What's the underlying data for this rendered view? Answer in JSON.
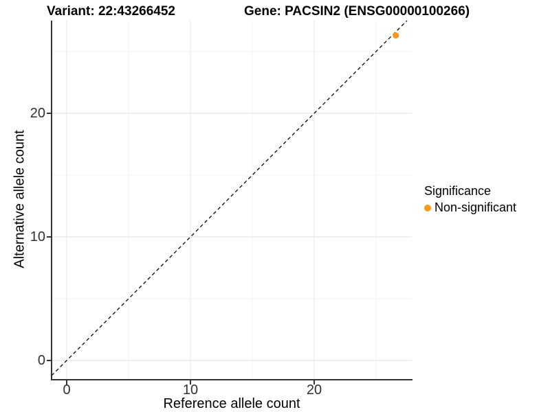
{
  "titles": {
    "variant": "Variant: 22:43266452",
    "gene": "Gene: PACSIN2 (ENSG00000100266)"
  },
  "chart_data": {
    "type": "scatter",
    "title_left": "Variant: 22:43266452",
    "title_right": "Gene: PACSIN2 (ENSG00000100266)",
    "xlabel": "Reference allele count",
    "ylabel": "Alternative allele count",
    "x_ticks": [
      0,
      10,
      20
    ],
    "y_ticks": [
      0,
      10,
      20
    ],
    "x_tick_labels": [
      "0",
      "10",
      "20"
    ],
    "y_tick_labels": [
      "0",
      "10",
      "20"
    ],
    "x_minor_ticks": [
      5,
      15,
      25
    ],
    "y_minor_ticks": [
      5,
      15,
      25
    ],
    "xlim": [
      -1.25,
      27.9
    ],
    "ylim": [
      -1.55,
      27.5
    ],
    "grid": true,
    "reference_line": {
      "type": "identity",
      "slope": 1,
      "intercept": 0,
      "style": "dashed",
      "color": "#000000"
    },
    "series": [
      {
        "name": "Non-significant",
        "color": "#F8981D",
        "points": [
          {
            "x": 26.6,
            "y": 26.3
          }
        ]
      }
    ],
    "legend": {
      "title": "Significance",
      "position": "right",
      "items": [
        {
          "label": "Non-significant",
          "color": "#F8981D"
        }
      ]
    },
    "colors": {
      "point": "#F8981D",
      "grid_major": "#E8E8E8",
      "grid_minor": "#F3F3F3",
      "axis_line": "#333333",
      "tick_text": "#303030",
      "title_text": "#000000",
      "background": "#FFFFFF"
    }
  }
}
